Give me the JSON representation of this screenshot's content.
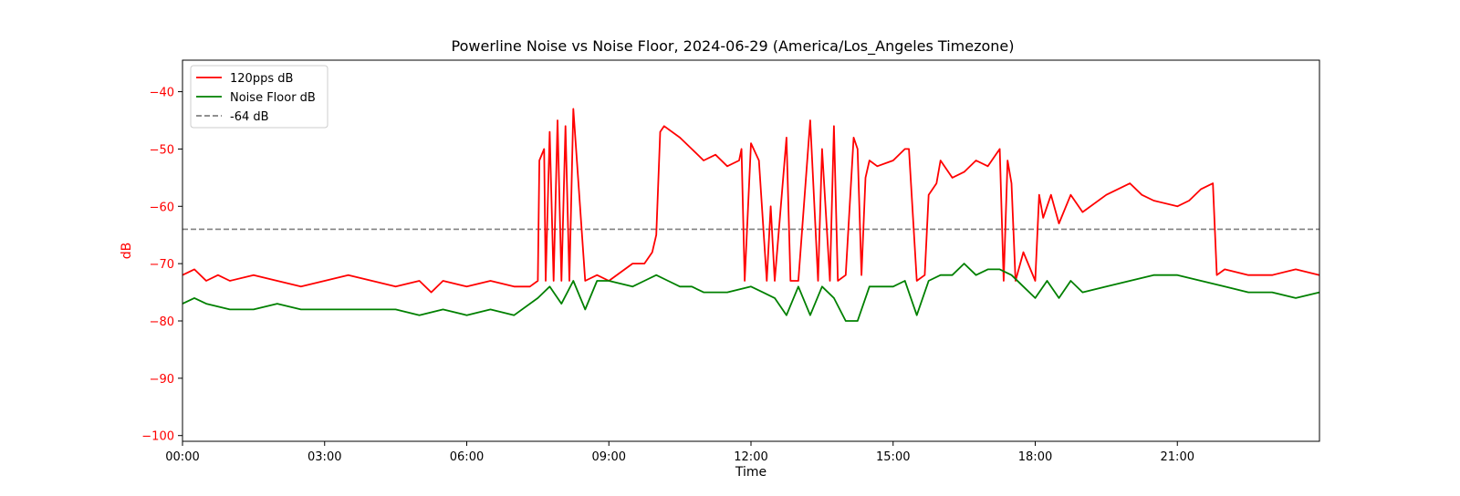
{
  "chart_data": {
    "type": "line",
    "title": "Powerline Noise vs Noise Floor, 2024-06-29 (America/Los_Angeles Timezone)",
    "xlabel": "Time",
    "ylabel": "dB",
    "xlim": [
      "00:00",
      "24:00"
    ],
    "ylim": [
      -101,
      -34.5
    ],
    "x_ticks": [
      "00:00",
      "03:00",
      "06:00",
      "09:00",
      "12:00",
      "15:00",
      "18:00",
      "21:00"
    ],
    "y_ticks": [
      -40,
      -50,
      -60,
      -70,
      -80,
      -90,
      -100
    ],
    "grid": false,
    "legend_position": "upper-left",
    "colors": {
      "series_120pps": "#ff0000",
      "series_noise_floor": "#008000",
      "reference_line": "#808080",
      "ylabel_color": "#ff0000"
    },
    "series": [
      {
        "name": "120pps dB",
        "x": [
          "00:00",
          "00:15",
          "00:30",
          "00:45",
          "01:00",
          "01:30",
          "02:00",
          "02:30",
          "03:00",
          "03:30",
          "04:00",
          "04:30",
          "05:00",
          "05:15",
          "05:30",
          "06:00",
          "06:30",
          "07:00",
          "07:20",
          "07:30",
          "07:32",
          "07:38",
          "07:40",
          "07:45",
          "07:50",
          "07:55",
          "08:00",
          "08:05",
          "08:10",
          "08:15",
          "08:30",
          "08:45",
          "09:00",
          "09:30",
          "09:45",
          "09:55",
          "10:00",
          "10:05",
          "10:10",
          "10:30",
          "10:45",
          "11:00",
          "11:15",
          "11:30",
          "11:45",
          "11:48",
          "11:52",
          "12:00",
          "12:10",
          "12:20",
          "12:25",
          "12:30",
          "12:45",
          "12:50",
          "13:00",
          "13:15",
          "13:25",
          "13:30",
          "13:40",
          "13:45",
          "13:50",
          "14:00",
          "14:10",
          "14:15",
          "14:20",
          "14:25",
          "14:30",
          "14:40",
          "15:00",
          "15:15",
          "15:20",
          "15:30",
          "15:40",
          "15:45",
          "15:55",
          "16:00",
          "16:15",
          "16:30",
          "16:45",
          "17:00",
          "17:15",
          "17:20",
          "17:25",
          "17:30",
          "17:35",
          "17:45",
          "18:00",
          "18:05",
          "18:10",
          "18:20",
          "18:30",
          "18:45",
          "19:00",
          "19:30",
          "20:00",
          "20:15",
          "20:30",
          "21:00",
          "21:15",
          "21:30",
          "21:45",
          "21:50",
          "22:00",
          "22:30",
          "23:00",
          "23:30",
          "24:00"
        ],
        "values": [
          -72,
          -71,
          -73,
          -72,
          -73,
          -72,
          -73,
          -74,
          -73,
          -72,
          -73,
          -74,
          -73,
          -75,
          -73,
          -74,
          -73,
          -74,
          -74,
          -73,
          -52,
          -50,
          -73,
          -47,
          -73,
          -45,
          -73,
          -46,
          -73,
          -43,
          -73,
          -72,
          -73,
          -70,
          -70,
          -68,
          -65,
          -47,
          -46,
          -48,
          -50,
          -52,
          -51,
          -53,
          -52,
          -50,
          -73,
          -49,
          -52,
          -73,
          -60,
          -73,
          -48,
          -73,
          -73,
          -45,
          -73,
          -50,
          -73,
          -46,
          -73,
          -72,
          -48,
          -50,
          -72,
          -55,
          -52,
          -53,
          -52,
          -50,
          -50,
          -73,
          -72,
          -58,
          -56,
          -52,
          -55,
          -54,
          -52,
          -53,
          -50,
          -73,
          -52,
          -56,
          -73,
          -68,
          -73,
          -58,
          -62,
          -58,
          -63,
          -58,
          -61,
          -58,
          -56,
          -58,
          -59,
          -60,
          -59,
          -57,
          -56,
          -72,
          -71,
          -72,
          -72,
          -71,
          -72
        ]
      },
      {
        "name": "Noise Floor dB",
        "x": [
          "00:00",
          "00:15",
          "00:30",
          "01:00",
          "01:30",
          "02:00",
          "02:30",
          "03:00",
          "03:30",
          "04:00",
          "04:30",
          "05:00",
          "05:30",
          "06:00",
          "06:30",
          "07:00",
          "07:30",
          "07:45",
          "08:00",
          "08:15",
          "08:30",
          "08:45",
          "09:00",
          "09:30",
          "09:45",
          "10:00",
          "10:15",
          "10:30",
          "10:45",
          "11:00",
          "11:30",
          "12:00",
          "12:15",
          "12:30",
          "12:45",
          "13:00",
          "13:15",
          "13:30",
          "13:45",
          "14:00",
          "14:15",
          "14:30",
          "14:45",
          "15:00",
          "15:15",
          "15:30",
          "15:45",
          "16:00",
          "16:15",
          "16:30",
          "16:45",
          "17:00",
          "17:15",
          "17:30",
          "17:45",
          "18:00",
          "18:15",
          "18:30",
          "18:45",
          "19:00",
          "19:30",
          "20:00",
          "20:30",
          "21:00",
          "21:30",
          "22:00",
          "22:30",
          "23:00",
          "23:30",
          "24:00"
        ],
        "values": [
          -77,
          -76,
          -77,
          -78,
          -78,
          -77,
          -78,
          -78,
          -78,
          -78,
          -78,
          -79,
          -78,
          -79,
          -78,
          -79,
          -76,
          -74,
          -77,
          -73,
          -78,
          -73,
          -73,
          -74,
          -73,
          -72,
          -73,
          -74,
          -74,
          -75,
          -75,
          -74,
          -75,
          -76,
          -79,
          -74,
          -79,
          -74,
          -76,
          -80,
          -80,
          -74,
          -74,
          -74,
          -73,
          -79,
          -73,
          -72,
          -72,
          -70,
          -72,
          -71,
          -71,
          -72,
          -74,
          -76,
          -73,
          -76,
          -73,
          -75,
          -74,
          -73,
          -72,
          -72,
          -73,
          -74,
          -75,
          -75,
          -76,
          -75
        ]
      }
    ],
    "reference_lines": [
      {
        "name": "-64 dB",
        "y": -64,
        "style": "dashed"
      }
    ]
  }
}
